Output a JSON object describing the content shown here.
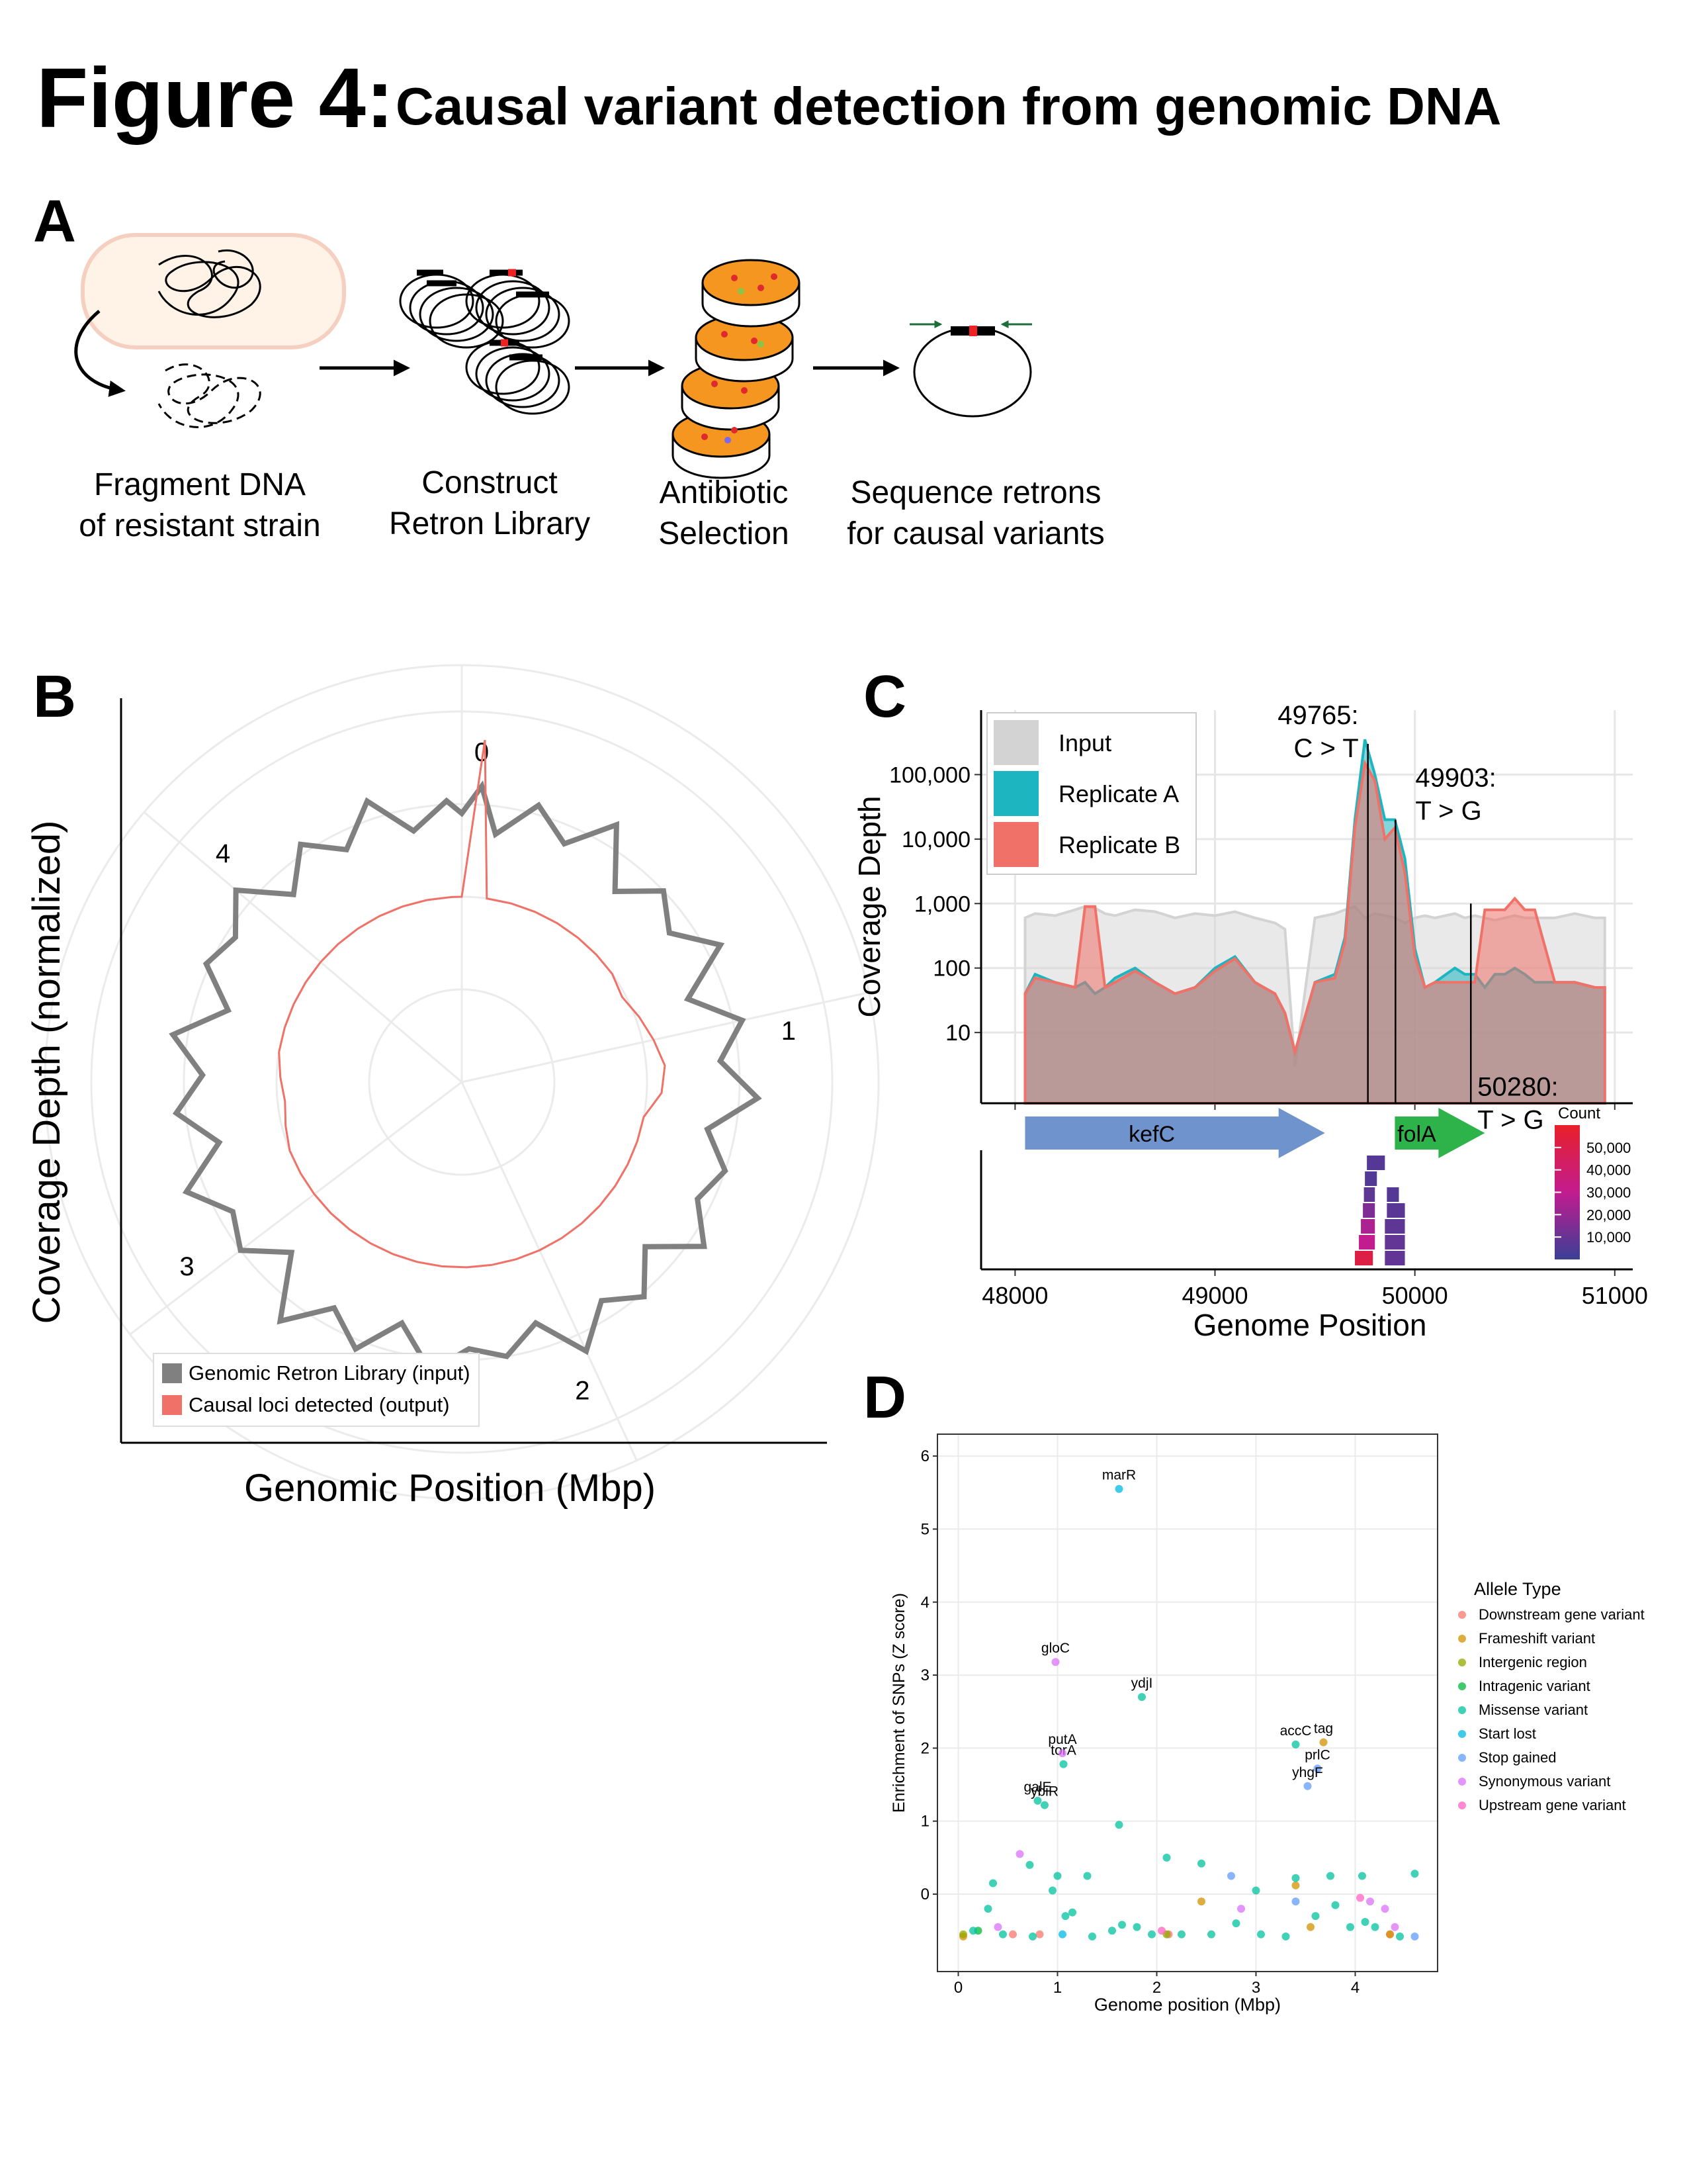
{
  "figure": {
    "label": "Figure 4:",
    "title": "Causal variant detection from genomic DNA"
  },
  "panel_a": {
    "label": "A",
    "steps": [
      [
        "Fragment DNA",
        "of resistant strain"
      ],
      [
        "Construct",
        "Retron Library"
      ],
      [
        "Antibiotic",
        "Selection"
      ],
      [
        "Sequence retrons",
        "for causal variants"
      ]
    ]
  },
  "chart_data": [
    {
      "type": "polar",
      "panel_label": "B",
      "x_label": "Genomic Position (Mbp)",
      "y_label": "Coverage Depth (normalized)",
      "xlim": [
        0,
        4.64
      ],
      "ylim": [
        0,
        2
      ],
      "xticks": [
        0,
        1,
        2,
        3,
        4
      ],
      "legend": "bottom-left",
      "x": [
        0,
        0.05,
        0.1,
        0.2,
        0.3,
        0.4,
        0.5,
        0.6,
        0.7,
        0.8,
        0.9,
        1,
        1.1,
        1.2,
        1.3,
        1.4,
        1.5,
        1.6,
        1.7,
        1.8,
        1.9,
        2,
        2.1,
        2.2,
        2.3,
        2.4,
        2.5,
        2.6,
        2.7,
        2.8,
        2.9,
        3,
        3.1,
        3.2,
        3.3,
        3.4,
        3.5,
        3.6,
        3.7,
        3.8,
        3.9,
        4,
        4.1,
        4.2,
        4.3,
        4.4,
        4.5,
        4.6
      ],
      "series": [
        {
          "name": "Genomic Retron Library (input)",
          "color": "#808080",
          "values": [
            1.45,
            1.6,
            1.35,
            1.55,
            1.4,
            1.62,
            1.32,
            1.5,
            1.38,
            1.58,
            1.3,
            1.55,
            1.4,
            1.6,
            1.35,
            1.5,
            1.42,
            1.58,
            1.33,
            1.52,
            1.4,
            1.6,
            1.36,
            1.5,
            1.44,
            1.57,
            1.34,
            1.55,
            1.4,
            1.62,
            1.3,
            1.5,
            1.42,
            1.6,
            1.35,
            1.55,
            1.4,
            1.58,
            1.32,
            1.52,
            1.45,
            1.6,
            1.36,
            1.55,
            1.4,
            1.6,
            1.38,
            1.52
          ]
        },
        {
          "name": "Causal loci detected (output)",
          "color": "#f07167",
          "values": [
            1.0,
            1.85,
            1.0,
            1.0,
            1.0,
            1.0,
            1.0,
            1.0,
            1.0,
            0.98,
            1.02,
            1.06,
            1.1,
            1.08,
            1.0,
            1.0,
            1.0,
            1.0,
            1.0,
            1.0,
            1.0,
            1.0,
            1.0,
            1.0,
            1.0,
            1.0,
            1.0,
            1.0,
            1.0,
            1.0,
            1.0,
            1.0,
            1.0,
            1.0,
            0.98,
            0.96,
            0.98,
            1.0,
            1.0,
            1.0,
            1.0,
            1.0,
            1.0,
            1.0,
            1.0,
            1.0,
            1.0,
            1.0
          ]
        }
      ]
    },
    {
      "type": "area",
      "panel_label": "C",
      "x_label": "Genome Position",
      "y_label": "Coverage Depth",
      "log_y": true,
      "grid": true,
      "xlim": [
        47830,
        51090
      ],
      "ylim": [
        0.8,
        1000000
      ],
      "xticks": [
        48000,
        49000,
        50000,
        51000
      ],
      "yticks": [
        10,
        100,
        {
          "value": 1000,
          "label": "1,000"
        },
        {
          "value": 10000,
          "label": "10,000"
        },
        {
          "value": 100000,
          "label": "100,000"
        }
      ],
      "x": [
        48050,
        48100,
        48200,
        48300,
        48350,
        48400,
        48450,
        48500,
        48600,
        48700,
        48800,
        48900,
        49000,
        49100,
        49200,
        49300,
        49350,
        49400,
        49500,
        49600,
        49650,
        49700,
        49750,
        49800,
        49850,
        49900,
        49950,
        50000,
        50050,
        50100,
        50200,
        50250,
        50300,
        50350,
        50400,
        50450,
        50500,
        50550,
        50600,
        50700,
        50800,
        50900,
        50950
      ],
      "series": [
        {
          "name": "Input",
          "color": "#d3d3d3",
          "values": [
            600,
            700,
            650,
            800,
            900,
            850,
            700,
            650,
            800,
            750,
            600,
            700,
            650,
            750,
            600,
            500,
            400,
            3,
            600,
            700,
            800,
            900,
            600,
            700,
            650,
            600,
            500,
            600,
            650,
            600,
            700,
            600,
            650,
            600,
            550,
            600,
            650,
            600,
            600,
            600,
            700,
            600,
            600
          ]
        },
        {
          "name": "Replicate A",
          "color": "#1cb5c0",
          "values": [
            40,
            80,
            60,
            50,
            60,
            40,
            50,
            70,
            100,
            60,
            40,
            50,
            100,
            150,
            60,
            40,
            20,
            5,
            60,
            80,
            300,
            20000,
            350000,
            100000,
            20000,
            20000,
            5000,
            200,
            50,
            60,
            100,
            80,
            80,
            50,
            80,
            80,
            100,
            80,
            60,
            60,
            60,
            50,
            50
          ]
        },
        {
          "name": "Replicate B",
          "color": "#f07167",
          "values": [
            40,
            70,
            60,
            50,
            900,
            900,
            50,
            60,
            90,
            60,
            40,
            50,
            90,
            140,
            60,
            40,
            20,
            5,
            60,
            70,
            250,
            15000,
            150000,
            80000,
            10000,
            15000,
            3000,
            150,
            50,
            60,
            60,
            60,
            60,
            800,
            800,
            800,
            1200,
            800,
            800,
            60,
            60,
            50,
            50
          ]
        }
      ],
      "annotations": [
        {
          "x": 49765,
          "y": 300000,
          "text": [
            "49765:",
            "C > T"
          ]
        },
        {
          "x": 49903,
          "y": 20000,
          "text": [
            "49903:",
            "T > G"
          ]
        },
        {
          "x": 50280,
          "y": 1000,
          "text": [
            "50280:",
            "T > G"
          ]
        }
      ],
      "genes": [
        {
          "name": "kefC",
          "start": 48050,
          "end": 49550,
          "color": "#6f93cc"
        },
        {
          "name": "folA",
          "start": 49900,
          "end": 50350,
          "color": "#2db34a"
        }
      ],
      "tiles_title": "Count",
      "clim": [
        0,
        60000
      ],
      "colorscale": [
        "#3a3f96",
        "#c21c8f",
        "#e8202a"
      ],
      "cticks": [
        {
          "value": 10000,
          "label": "10,000"
        },
        {
          "value": 20000,
          "label": "20,000"
        },
        {
          "value": 30000,
          "label": "30,000"
        },
        {
          "value": 40000,
          "label": "40,000"
        },
        {
          "value": 50000,
          "label": "50,000"
        }
      ],
      "tiles": [
        [
          49700,
          49790,
          52000
        ],
        [
          49720,
          49800,
          30000
        ],
        [
          49730,
          49800,
          25000
        ],
        [
          49740,
          49800,
          15000
        ],
        [
          49745,
          49800,
          8000
        ],
        [
          49750,
          49810,
          5000
        ],
        [
          49760,
          49850,
          6000
        ],
        [
          49850,
          49950,
          9000
        ],
        [
          49850,
          49950,
          9000
        ],
        [
          49850,
          49950,
          8000
        ],
        [
          49860,
          49950,
          7000
        ],
        [
          49860,
          49920,
          6000
        ]
      ]
    },
    {
      "type": "scatter",
      "panel_label": "D",
      "x_label": "Genome position (Mbp)",
      "y_label": "Enrichment of SNPs (Z score)",
      "legend_title": "Allele Type",
      "grid": true,
      "xlim": [
        -0.21,
        4.83
      ],
      "ylim": [
        -1.06,
        6.3
      ],
      "xticks": [
        0,
        1,
        2,
        3,
        4
      ],
      "yticks": [
        0,
        1,
        2,
        3,
        4,
        5,
        6
      ],
      "series": [
        {
          "name": "Downstream gene variant",
          "color": "#F8766D",
          "x": [
            0.55,
            0.82,
            2.12,
            4.35
          ],
          "values": [
            -0.55,
            -0.55,
            -0.55,
            -0.55
          ],
          "point_labels": [
            null,
            null,
            null,
            null
          ]
        },
        {
          "name": "Frameshift variant",
          "color": "#D39200",
          "x": [
            0.05,
            2.45,
            3.4,
            3.68,
            3.55,
            4.35
          ],
          "values": [
            -0.58,
            -0.1,
            0.12,
            2.08,
            -0.45,
            -0.55
          ],
          "point_labels": [
            null,
            null,
            null,
            "tag",
            null,
            null
          ]
        },
        {
          "name": "Intergenic region",
          "color": "#93AA00",
          "x": [
            0.05,
            2.1
          ],
          "values": [
            -0.55,
            -0.55
          ],
          "point_labels": [
            null,
            null
          ]
        },
        {
          "name": "Intragenic variant",
          "color": "#00BA38",
          "x": [
            0.2
          ],
          "values": [
            -0.5
          ],
          "point_labels": [
            null
          ]
        },
        {
          "name": "Missense variant",
          "color": "#00C19F",
          "x": [
            1.85,
            3.4,
            1.06,
            0.8,
            0.87,
            1.62,
            0.35,
            0.72,
            1.0,
            1.3,
            2.1,
            2.45,
            3.0,
            3.4,
            3.75,
            4.07,
            4.6,
            0.3,
            0.15,
            0.45,
            0.75,
            0.95,
            1.08,
            1.15,
            1.35,
            1.55,
            1.65,
            1.8,
            1.95,
            2.25,
            2.55,
            2.8,
            3.05,
            3.3,
            3.6,
            3.8,
            3.95,
            4.1,
            4.2,
            4.45
          ],
          "values": [
            2.7,
            2.05,
            1.78,
            1.28,
            1.22,
            0.95,
            0.15,
            0.4,
            0.25,
            0.25,
            0.5,
            0.42,
            0.05,
            0.22,
            0.25,
            0.25,
            0.28,
            -0.2,
            -0.5,
            -0.55,
            -0.58,
            0.05,
            -0.3,
            -0.25,
            -0.58,
            -0.5,
            -0.42,
            -0.45,
            -0.55,
            -0.55,
            -0.55,
            -0.4,
            -0.55,
            -0.58,
            -0.3,
            -0.15,
            -0.45,
            -0.38,
            -0.45,
            -0.58
          ],
          "point_labels": [
            "ydjI",
            "accC",
            "torA",
            "galE",
            "ybiR",
            null,
            null,
            null,
            null,
            null,
            null,
            null,
            null,
            null,
            null,
            null,
            null,
            null,
            null,
            null,
            null,
            null,
            null,
            null,
            null,
            null,
            null,
            null,
            null,
            null,
            null,
            null,
            null,
            null,
            null,
            null,
            null,
            null,
            null,
            null
          ]
        },
        {
          "name": "Start lost",
          "color": "#00B9E3",
          "x": [
            1.62,
            1.05
          ],
          "values": [
            5.55,
            -0.55
          ],
          "point_labels": [
            "marR",
            null
          ]
        },
        {
          "name": "Stop gained",
          "color": "#619CFF",
          "x": [
            3.62,
            3.52,
            2.75,
            3.4,
            4.6
          ],
          "values": [
            1.72,
            1.48,
            0.25,
            -0.1,
            -0.58
          ],
          "point_labels": [
            "prlC",
            "yhgF",
            null,
            null,
            null
          ]
        },
        {
          "name": "Synonymous variant",
          "color": "#DB72FB",
          "x": [
            0.98,
            1.05,
            0.62,
            2.85,
            4.15,
            4.3,
            0.4,
            4.4
          ],
          "values": [
            3.18,
            1.93,
            0.55,
            -0.2,
            -0.1,
            -0.2,
            -0.45,
            -0.45
          ],
          "point_labels": [
            "gloC",
            "putA",
            null,
            null,
            null,
            null,
            null,
            null
          ]
        },
        {
          "name": "Upstream gene variant",
          "color": "#FF61C3",
          "x": [
            4.05,
            2.05
          ],
          "values": [
            -0.05,
            -0.5
          ],
          "point_labels": [
            null,
            null
          ]
        }
      ]
    }
  ]
}
